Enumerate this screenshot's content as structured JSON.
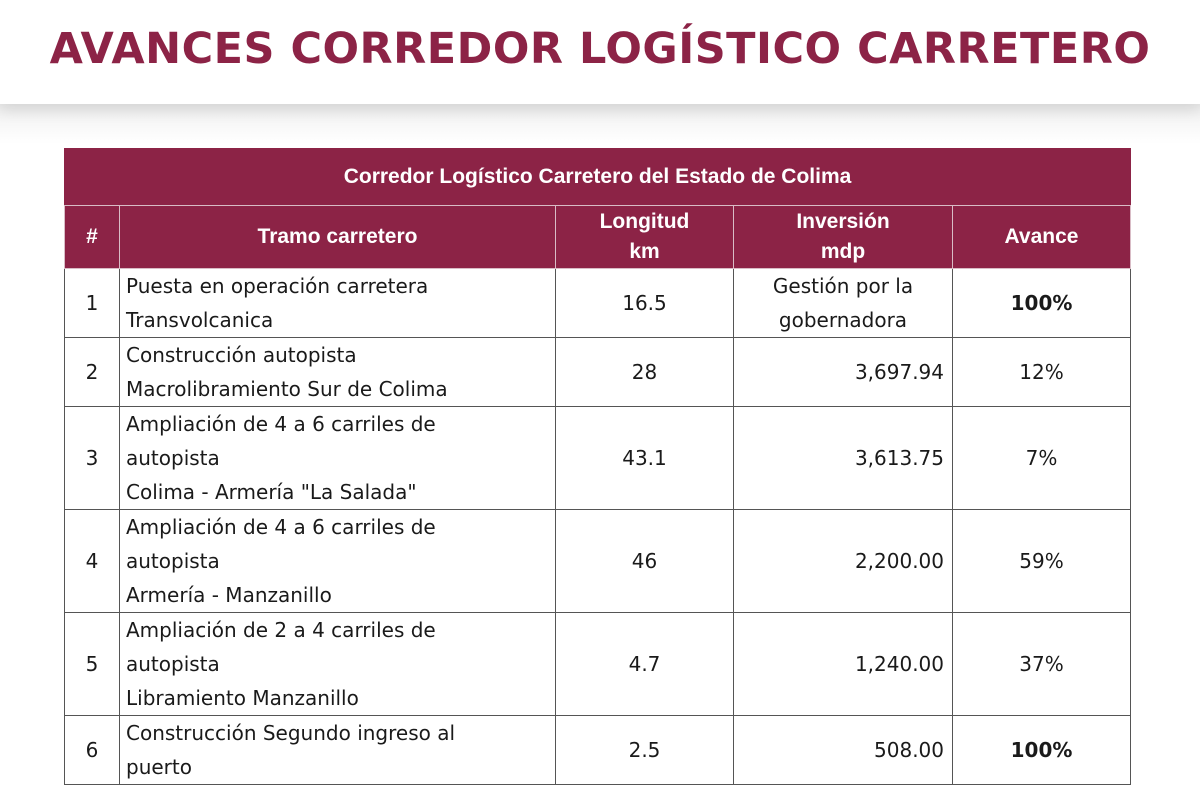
{
  "page": {
    "title": "AVANCES CORREDOR LOGÍSTICO CARRETERO",
    "accent_color": "#8c2346"
  },
  "table": {
    "caption": "Corredor Logístico Carretero del Estado de Colima",
    "headers": {
      "num": "#",
      "tramo": "Tramo carretero",
      "longitud": [
        "Longitud",
        "km"
      ],
      "inversion": [
        "Inversión",
        "mdp"
      ],
      "avance": "Avance"
    },
    "rows": [
      {
        "num": "1",
        "tramo": [
          "Puesta en operación carretera",
          "Transvolcanica"
        ],
        "longitud": "16.5",
        "inversion": [
          "Gestión por la",
          "gobernadora"
        ],
        "avance": "100%"
      },
      {
        "num": "2",
        "tramo": [
          "Construcción autopista",
          "Macrolibramiento Sur de Colima"
        ],
        "longitud": "28",
        "inversion": [
          "3,697.94"
        ],
        "avance": "12%"
      },
      {
        "num": "3",
        "tramo": [
          "Ampliación de 4 a 6 carriles de",
          "autopista",
          "Colima - Armería \"La Salada\""
        ],
        "longitud": "43.1",
        "inversion": [
          "3,613.75"
        ],
        "avance": "7%"
      },
      {
        "num": "4",
        "tramo": [
          "Ampliación de 4 a 6 carriles de",
          "autopista",
          "Armería - Manzanillo"
        ],
        "longitud": "46",
        "inversion": [
          "2,200.00"
        ],
        "avance": "59%"
      },
      {
        "num": "5",
        "tramo": [
          "Ampliación de 2 a 4 carriles de",
          "autopista",
          "Libramiento Manzanillo"
        ],
        "longitud": "4.7",
        "inversion": [
          "1,240.00"
        ],
        "avance": "37%"
      },
      {
        "num": "6",
        "tramo": [
          "Construcción Segundo ingreso al",
          "puerto"
        ],
        "longitud": "2.5",
        "inversion": [
          "508.00"
        ],
        "avance": "100%"
      }
    ]
  }
}
